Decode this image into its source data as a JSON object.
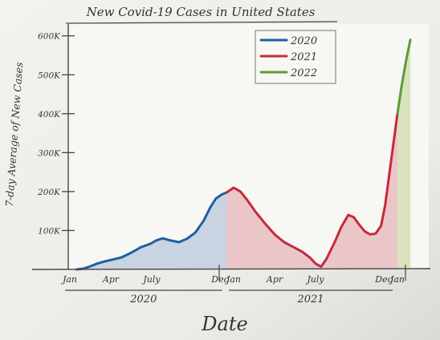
{
  "chart_data": {
    "type": "area",
    "title": "New Covid-19 Cases in United States",
    "xlabel": "Date",
    "ylabel": "7-day Average of New Cases",
    "ylim": [
      0,
      620000
    ],
    "y_ticks": [
      {
        "value": 100000,
        "label": "100K"
      },
      {
        "value": 200000,
        "label": "200K"
      },
      {
        "value": 300000,
        "label": "300K"
      },
      {
        "value": 400000,
        "label": "400K"
      },
      {
        "value": 500000,
        "label": "500K"
      },
      {
        "value": 600000,
        "label": "600K"
      }
    ],
    "x_ticks": [
      {
        "month": 0,
        "label": "Jan"
      },
      {
        "month": 3,
        "label": "Apr"
      },
      {
        "month": 6,
        "label": "July"
      },
      {
        "month": 11,
        "label": "Dec"
      },
      {
        "month": 12,
        "label": "Jan"
      },
      {
        "month": 15,
        "label": "Apr"
      },
      {
        "month": 18,
        "label": "July"
      },
      {
        "month": 23,
        "label": "Dec"
      },
      {
        "month": 24,
        "label": "Jan"
      }
    ],
    "year_labels": [
      {
        "label": "2020",
        "from": 0,
        "to": 11.5
      },
      {
        "label": "2021",
        "from": 12,
        "to": 24
      }
    ],
    "legend": {
      "position": "top-right"
    },
    "grid": false,
    "series": [
      {
        "name": "2020",
        "color": "#1f5fa0",
        "fill": "#b9c8dc",
        "points": [
          [
            0.5,
            0
          ],
          [
            1,
            2000
          ],
          [
            1.5,
            8000
          ],
          [
            2,
            15000
          ],
          [
            2.6,
            21000
          ],
          [
            3.2,
            26000
          ],
          [
            3.8,
            31000
          ],
          [
            4.5,
            43000
          ],
          [
            5.2,
            57000
          ],
          [
            5.9,
            66000
          ],
          [
            6.3,
            74000
          ],
          [
            6.8,
            80000
          ],
          [
            7.3,
            75000
          ],
          [
            8.0,
            70000
          ],
          [
            8.6,
            79000
          ],
          [
            9.2,
            95000
          ],
          [
            9.8,
            125000
          ],
          [
            10.3,
            160000
          ],
          [
            10.7,
            182000
          ],
          [
            11.1,
            192000
          ],
          [
            11.5,
            198000
          ]
        ]
      },
      {
        "name": "2021",
        "color": "#c52a3a",
        "fill": "#e5b5bb",
        "points": [
          [
            11.5,
            198000
          ],
          [
            12.0,
            210000
          ],
          [
            12.5,
            200000
          ],
          [
            13.0,
            178000
          ],
          [
            13.6,
            148000
          ],
          [
            14.3,
            118000
          ],
          [
            15.0,
            90000
          ],
          [
            15.7,
            70000
          ],
          [
            16.4,
            57000
          ],
          [
            17.0,
            46000
          ],
          [
            17.6,
            30000
          ],
          [
            18.0,
            15000
          ],
          [
            18.4,
            7000
          ],
          [
            18.8,
            27000
          ],
          [
            19.4,
            70000
          ],
          [
            19.9,
            110000
          ],
          [
            20.4,
            140000
          ],
          [
            20.8,
            134000
          ],
          [
            21.2,
            115000
          ],
          [
            21.6,
            98000
          ],
          [
            22.0,
            90000
          ],
          [
            22.4,
            92000
          ],
          [
            22.8,
            112000
          ],
          [
            23.1,
            165000
          ],
          [
            23.5,
            270000
          ],
          [
            24.0,
            400000
          ]
        ]
      },
      {
        "name": "2022",
        "color": "#5c9a3a",
        "fill": "#cfdcab",
        "points": [
          [
            24.0,
            400000
          ],
          [
            24.3,
            470000
          ],
          [
            24.65,
            540000
          ],
          [
            24.95,
            590000
          ]
        ]
      }
    ]
  }
}
